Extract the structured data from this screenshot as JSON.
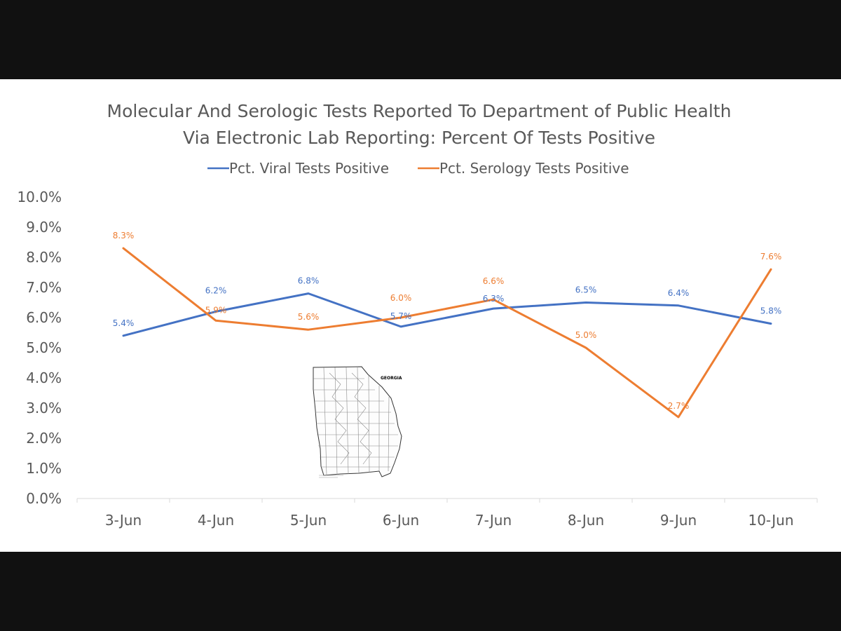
{
  "chart_data": {
    "type": "line",
    "title": "Molecular And Serologic Tests Reported To Department of Public Health",
    "subtitle": "Via Electronic Lab Reporting: Percent Of Tests Positive",
    "categories": [
      "3-Jun",
      "4-Jun",
      "5-Jun",
      "6-Jun",
      "7-Jun",
      "8-Jun",
      "9-Jun",
      "10-Jun"
    ],
    "series": [
      {
        "name": "Pct. Viral Tests Positive",
        "color": "#4472C4",
        "values": [
          5.4,
          6.2,
          6.8,
          5.7,
          6.3,
          6.5,
          6.4,
          5.8
        ],
        "labels": [
          "5.4%",
          "6.2%",
          "6.8%",
          "5.7%",
          "6.3%",
          "6.5%",
          "6.4%",
          "5.8%"
        ]
      },
      {
        "name": "Pct. Serology Tests Positive",
        "color": "#ED7D31",
        "values": [
          8.3,
          5.9,
          5.6,
          6.0,
          6.6,
          5.0,
          2.7,
          7.6
        ],
        "labels": [
          "8.3%",
          "5.9%",
          "5.6%",
          "6.0%",
          "6.6%",
          "5.0%",
          "2.7%",
          "7.6%"
        ]
      }
    ],
    "ylim": [
      0,
      10
    ],
    "y_ticks": [
      "0.0%",
      "1.0%",
      "2.0%",
      "3.0%",
      "4.0%",
      "5.0%",
      "6.0%",
      "7.0%",
      "8.0%",
      "9.0%",
      "10.0%"
    ],
    "grid": false,
    "legend_position": "top"
  },
  "inset_map": {
    "label": "GEORGIA",
    "icon": "georgia-county-map-icon"
  }
}
